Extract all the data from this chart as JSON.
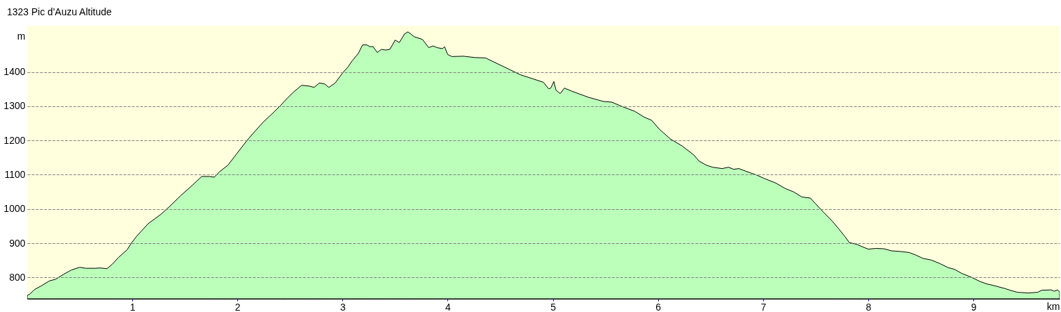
{
  "chart_data": {
    "type": "area",
    "title": "1323 Pic d'Auzu Altitude",
    "xlabel": "km",
    "ylabel": "m",
    "x": [
      0,
      0.03,
      0.07,
      0.13,
      0.21,
      0.27,
      0.35,
      0.42,
      0.5,
      0.56,
      0.65,
      0.69,
      0.76,
      0.81,
      0.87,
      0.95,
      0.99,
      1.04,
      1.15,
      1.27,
      1.35,
      1.46,
      1.57,
      1.66,
      1.73,
      1.78,
      1.83,
      1.91,
      1.99,
      2.04,
      2.11,
      2.17,
      2.25,
      2.32,
      2.41,
      2.47,
      2.54,
      2.61,
      2.68,
      2.73,
      2.78,
      2.83,
      2.87,
      2.93,
      3.0,
      3.05,
      3.09,
      3.15,
      3.19,
      3.23,
      3.26,
      3.29,
      3.33,
      3.37,
      3.41,
      3.45,
      3.5,
      3.54,
      3.59,
      3.62,
      3.65,
      3.68,
      3.76,
      3.82,
      3.86,
      3.9,
      3.95,
      3.97,
      4.0,
      4.04,
      4.15,
      4.26,
      4.36,
      4.44,
      4.59,
      4.69,
      4.81,
      4.91,
      4.96,
      4.98,
      5.01,
      5.03,
      5.07,
      5.11,
      5.18,
      5.34,
      5.48,
      5.56,
      5.66,
      5.78,
      5.87,
      5.94,
      6.01,
      6.12,
      6.23,
      6.34,
      6.39,
      6.46,
      6.52,
      6.61,
      6.67,
      6.72,
      6.77,
      6.83,
      6.94,
      7.02,
      7.12,
      7.21,
      7.29,
      7.37,
      7.45,
      7.5,
      7.58,
      7.66,
      7.72,
      7.78,
      7.82,
      7.89,
      7.96,
      8.0,
      8.07,
      8.15,
      8.22,
      8.31,
      8.39,
      8.45,
      8.52,
      8.6,
      8.68,
      8.76,
      8.82,
      8.89,
      8.98,
      9.06,
      9.12,
      9.19,
      9.3,
      9.37,
      9.42,
      9.52,
      9.61,
      9.65,
      9.74,
      9.77,
      9.8,
      9.82
    ],
    "series": [
      {
        "color": "#bbffbb",
        "values": [
          747,
          753,
          765,
          775,
          790,
          795,
          810,
          822,
          830,
          827,
          827,
          828,
          826,
          839,
          859,
          881,
          900,
          920,
          957,
          984,
          1006,
          1039,
          1069,
          1095,
          1095,
          1093,
          1109,
          1128,
          1160,
          1180,
          1207,
          1228,
          1255,
          1275,
          1302,
          1322,
          1343,
          1361,
          1359,
          1355,
          1368,
          1365,
          1355,
          1368,
          1397,
          1414,
          1432,
          1454,
          1479,
          1479,
          1474,
          1474,
          1457,
          1466,
          1464,
          1466,
          1493,
          1486,
          1511,
          1517,
          1511,
          1503,
          1495,
          1471,
          1476,
          1471,
          1468,
          1474,
          1451,
          1445,
          1446,
          1442,
          1441,
          1429,
          1407,
          1392,
          1380,
          1370,
          1351,
          1353,
          1372,
          1347,
          1337,
          1353,
          1344,
          1326,
          1314,
          1312,
          1299,
          1285,
          1268,
          1259,
          1234,
          1204,
          1184,
          1158,
          1140,
          1128,
          1122,
          1118,
          1122,
          1116,
          1118,
          1111,
          1099,
          1088,
          1076,
          1060,
          1050,
          1035,
          1032,
          1015,
          989,
          964,
          942,
          919,
          902,
          897,
          888,
          883,
          885,
          884,
          878,
          876,
          873,
          866,
          856,
          851,
          841,
          829,
          824,
          812,
          801,
          789,
          782,
          777,
          768,
          761,
          757,
          755,
          757,
          763,
          764,
          760,
          764,
          758
        ]
      }
    ],
    "xlim": [
      0,
      9.82
    ],
    "ylim": [
      738,
      1535
    ],
    "xticks": [
      1,
      2,
      3,
      4,
      5,
      6,
      7,
      8,
      9
    ],
    "yticks": [
      800,
      900,
      1000,
      1100,
      1200,
      1300,
      1400
    ],
    "grid": "y"
  }
}
